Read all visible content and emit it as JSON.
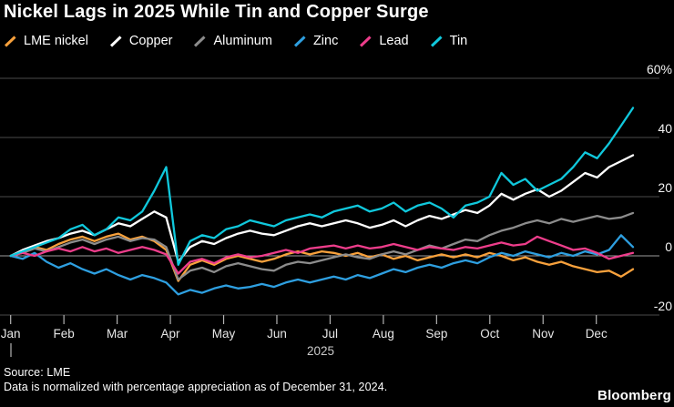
{
  "title": "Nickel Lags in 2025 While Tin and Copper Surge",
  "legend": [
    {
      "label": "LME nickel",
      "color": "#F8A13C"
    },
    {
      "label": "Copper",
      "color": "#FFFFFF"
    },
    {
      "label": "Aluminum",
      "color": "#8C8C8C"
    },
    {
      "label": "Zinc",
      "color": "#2E9FE0"
    },
    {
      "label": "Lead",
      "color": "#EE3D8B"
    },
    {
      "label": "Tin",
      "color": "#10C8DC"
    }
  ],
  "footer": {
    "source": "Source: LME",
    "note": "Data is normalized with percentage appreciation as of December 31, 2024.",
    "brand": "Bloomberg"
  },
  "chart_data": {
    "type": "line",
    "title": "Nickel Lags in 2025 While Tin and Copper Surge",
    "unit": "%",
    "note": "values are weekly % appreciation vs Dec 31, 2024; 53 points spanning Jan–late Dec 2025",
    "x_axis": {
      "months": [
        "Jan",
        "Feb",
        "Mar",
        "Apr",
        "May",
        "Jun",
        "Jul",
        "Aug",
        "Sep",
        "Oct",
        "Nov",
        "Dec"
      ],
      "year_label": "2025",
      "year_start_marker": true
    },
    "y_axis": {
      "ticks": [
        {
          "value": 60,
          "label": "60%"
        },
        {
          "value": 40,
          "label": "40"
        },
        {
          "value": 20,
          "label": "20"
        },
        {
          "value": 0,
          "label": "0"
        },
        {
          "value": -20,
          "label": "-20"
        }
      ],
      "ylim": [
        -25,
        60
      ],
      "grid": true,
      "zero_line_highlight": true
    },
    "legend_position": "top",
    "series": [
      {
        "name": "LME nickel",
        "color": "#F8A13C",
        "values": [
          0,
          1.5,
          3,
          2,
          4,
          5.5,
          6.5,
          5,
          6.5,
          7.5,
          5.5,
          6.5,
          5,
          2,
          -8.5,
          -3,
          -1.5,
          -3,
          -1,
          0,
          -1,
          -2,
          -1,
          0.5,
          1.5,
          0.5,
          1.5,
          1,
          0,
          1,
          -0.5,
          0.5,
          -1,
          0,
          -1.5,
          -0.5,
          0.5,
          -0.5,
          0.5,
          -0.5,
          1,
          0,
          -1.5,
          -0.5,
          -2,
          -3,
          -2,
          -3.5,
          -4.5,
          -5.5,
          -5,
          -7,
          -4.5
        ]
      },
      {
        "name": "Copper",
        "color": "#FFFFFF",
        "values": [
          0,
          2,
          3.5,
          5,
          6,
          7.5,
          8.5,
          7,
          9,
          11,
          10,
          12.5,
          15,
          13,
          -2,
          3,
          5,
          4,
          6,
          7.5,
          8.5,
          7.5,
          7,
          8.5,
          10,
          11,
          10,
          11,
          12,
          11,
          9.5,
          10.5,
          12,
          10,
          12,
          13.5,
          12.5,
          14,
          15.5,
          14.5,
          17,
          21,
          19,
          21,
          22.5,
          20,
          22,
          25,
          28,
          26.5,
          30,
          32,
          34
        ]
      },
      {
        "name": "Aluminum",
        "color": "#8C8C8C",
        "values": [
          0,
          1,
          2.5,
          1.5,
          3,
          4.5,
          5.5,
          4,
          5.5,
          6.5,
          5,
          6,
          5.5,
          3,
          -8,
          -5,
          -4,
          -5.5,
          -3.5,
          -2.5,
          -3.5,
          -4.5,
          -5,
          -3,
          -2,
          -2.5,
          -1.5,
          -0.5,
          0.5,
          -0.5,
          -1,
          0.5,
          1.5,
          0.5,
          2,
          3.5,
          2.5,
          4,
          5.5,
          5,
          7,
          8.5,
          9.5,
          11,
          12,
          11,
          12.5,
          11.5,
          12.5,
          13.5,
          12.5,
          13,
          14.5
        ]
      },
      {
        "name": "Zinc",
        "color": "#2E9FE0",
        "values": [
          0,
          -1,
          1,
          -2,
          -4,
          -2.5,
          -4.5,
          -6,
          -4.5,
          -6.5,
          -8,
          -6.5,
          -7.5,
          -9,
          -13,
          -11.5,
          -12.5,
          -11,
          -10,
          -11,
          -10.5,
          -9.5,
          -10.5,
          -9,
          -8,
          -9,
          -8,
          -7,
          -8,
          -6.5,
          -7.5,
          -6,
          -4.5,
          -5.5,
          -4,
          -3,
          -4,
          -2.5,
          -1.5,
          -2.5,
          -0.5,
          1,
          0,
          1.5,
          0.5,
          -0.5,
          1,
          0,
          1.5,
          0.5,
          2,
          7,
          3
        ]
      },
      {
        "name": "Lead",
        "color": "#EE3D8B",
        "values": [
          0,
          1,
          0,
          1.5,
          2.5,
          1.5,
          3,
          1.5,
          2.5,
          1,
          2,
          3,
          2,
          0.5,
          -6,
          -2,
          -1,
          -2.5,
          -0.5,
          0.5,
          -0.5,
          0,
          1,
          2,
          1,
          2.5,
          3,
          3.5,
          2.5,
          3.5,
          2.5,
          3,
          4,
          3,
          2,
          3,
          2.5,
          2,
          3,
          2.5,
          3.5,
          4.5,
          3.5,
          4,
          6.5,
          5,
          3.5,
          2,
          2.5,
          1,
          -1,
          0,
          1
        ]
      },
      {
        "name": "Tin",
        "color": "#10C8DC",
        "values": [
          0,
          1.5,
          3,
          4.5,
          6,
          9,
          10.5,
          7,
          9,
          13,
          12,
          15,
          22,
          30,
          -3,
          5,
          7,
          6,
          9,
          10,
          12,
          11,
          10,
          12,
          13,
          14,
          13,
          15,
          16,
          17,
          15,
          16,
          18,
          15,
          17,
          18,
          16,
          13,
          17,
          18,
          20,
          28,
          24,
          26,
          22,
          24,
          26,
          30,
          35,
          33,
          38,
          44,
          50
        ]
      }
    ]
  }
}
